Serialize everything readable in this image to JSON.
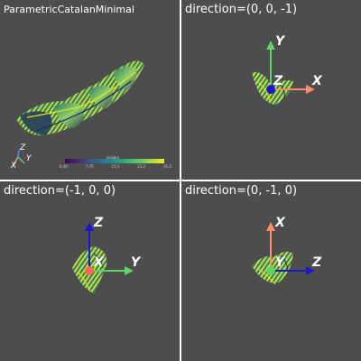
{
  "viewports": [
    {
      "id": "tl",
      "title": "ParametricCatalanMinimal"
    },
    {
      "id": "tr",
      "title": "direction=(0, 0, -1)"
    },
    {
      "id": "bl",
      "title": "direction=(-1, 0, 0)"
    },
    {
      "id": "br",
      "title": "direction=(0, -1, 0)"
    }
  ],
  "scalar_bar": {
    "title": "scalars",
    "ticks": [
      "0.00",
      "7.75",
      "15.5",
      "23.2",
      "31.0"
    ]
  },
  "orientation_widget": {
    "x": "X",
    "y": "Y",
    "z": "Z"
  },
  "axes": {
    "tr": {
      "horizontal": "X",
      "vertical": "Y",
      "depth": "Z"
    },
    "bl": {
      "horizontal": "Y",
      "vertical": "Z",
      "depth": "X"
    },
    "br": {
      "horizontal": "Z",
      "vertical": "X",
      "depth": "Y"
    }
  },
  "colors": {
    "background": "#4d4d4d",
    "divider": "#ffffff",
    "x_axis": "#ff8a66",
    "y_axis": "#5ed36a",
    "z_axis": "#1a1acc",
    "surface_dark": "#355a5a",
    "surface_light": "#8fd06a",
    "surface_yellow": "#e6e21a"
  }
}
